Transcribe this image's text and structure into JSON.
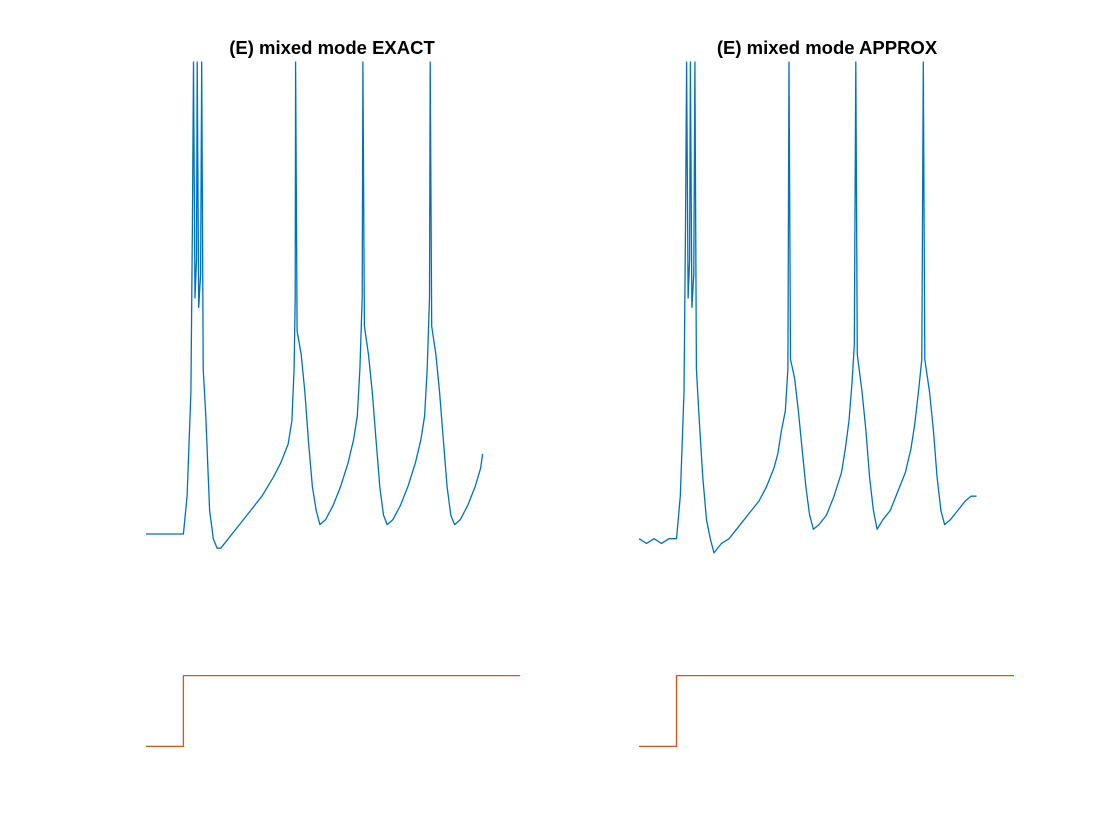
{
  "chart_data": [
    {
      "type": "line",
      "title": "(E) mixed mode EXACT",
      "grid": false,
      "axes_visible": false,
      "series": [
        {
          "color": "#0072BD",
          "points": [
            [
              0,
              -70
            ],
            [
              10,
              -70
            ],
            [
              11,
              -62
            ],
            [
              12,
              -40
            ],
            [
              12.4,
              -5
            ],
            [
              12.7,
              30
            ],
            [
              13.1,
              -20
            ],
            [
              13.5,
              -12
            ],
            [
              13.7,
              30
            ],
            [
              14.1,
              -22
            ],
            [
              14.6,
              -15
            ],
            [
              14.9,
              30
            ],
            [
              15.3,
              -35
            ],
            [
              16,
              -45
            ],
            [
              17,
              -65
            ],
            [
              18,
              -71
            ],
            [
              19,
              -73
            ],
            [
              20,
              -73
            ],
            [
              22,
              -71
            ],
            [
              25,
              -68
            ],
            [
              28,
              -65
            ],
            [
              31,
              -62
            ],
            [
              34,
              -58
            ],
            [
              36,
              -55
            ],
            [
              38,
              -51
            ],
            [
              39,
              -46
            ],
            [
              39.6,
              -35
            ],
            [
              39.9,
              -20
            ],
            [
              40,
              30
            ],
            [
              40.4,
              -27
            ],
            [
              41.5,
              -32
            ],
            [
              42.5,
              -40
            ],
            [
              43.5,
              -51
            ],
            [
              44.5,
              -60
            ],
            [
              45.5,
              -65
            ],
            [
              46.5,
              -68
            ],
            [
              48,
              -67
            ],
            [
              50,
              -64
            ],
            [
              52,
              -60
            ],
            [
              54,
              -55
            ],
            [
              55.5,
              -50
            ],
            [
              56.5,
              -45
            ],
            [
              57.2,
              -35
            ],
            [
              57.8,
              -20
            ],
            [
              58,
              30
            ],
            [
              58.4,
              -26
            ],
            [
              59.5,
              -32
            ],
            [
              60.5,
              -40
            ],
            [
              61.5,
              -50
            ],
            [
              62.5,
              -60
            ],
            [
              63.5,
              -66
            ],
            [
              64.5,
              -68
            ],
            [
              66,
              -67
            ],
            [
              68,
              -64
            ],
            [
              70,
              -60
            ],
            [
              72,
              -55
            ],
            [
              73.5,
              -50
            ],
            [
              74.5,
              -45
            ],
            [
              75.2,
              -35
            ],
            [
              75.8,
              -20
            ],
            [
              76,
              30
            ],
            [
              76.4,
              -26
            ],
            [
              77.5,
              -32
            ],
            [
              78.5,
              -40
            ],
            [
              79.5,
              -50
            ],
            [
              80.5,
              -60
            ],
            [
              81.5,
              -66
            ],
            [
              82.5,
              -68
            ],
            [
              84,
              -67
            ],
            [
              86,
              -64
            ],
            [
              88,
              -60
            ],
            [
              89.5,
              -56
            ],
            [
              90,
              -53
            ]
          ]
        },
        {
          "color": "#D95319",
          "points": [
            [
              0,
              -115
            ],
            [
              10,
              -115
            ],
            [
              10,
              -100
            ],
            [
              100,
              -100
            ]
          ]
        }
      ]
    },
    {
      "type": "line",
      "title": "(E) mixed mode APPROX",
      "grid": false,
      "axes_visible": false,
      "series": [
        {
          "color": "#0072BD",
          "points": [
            [
              0,
              -71
            ],
            [
              2,
              -72
            ],
            [
              4,
              -71
            ],
            [
              6,
              -72
            ],
            [
              8,
              -71
            ],
            [
              10,
              -71
            ],
            [
              11,
              -62
            ],
            [
              12,
              -40
            ],
            [
              12.4,
              -5
            ],
            [
              12.7,
              30
            ],
            [
              13.1,
              -20
            ],
            [
              13.5,
              -12
            ],
            [
              13.7,
              30
            ],
            [
              14.1,
              -22
            ],
            [
              14.6,
              -15
            ],
            [
              14.9,
              30
            ],
            [
              15.3,
              -35
            ],
            [
              16,
              -45
            ],
            [
              17,
              -58
            ],
            [
              18,
              -67
            ],
            [
              19,
              -71
            ],
            [
              20,
              -74
            ],
            [
              22,
              -72
            ],
            [
              24,
              -71
            ],
            [
              26,
              -69
            ],
            [
              28,
              -67
            ],
            [
              30,
              -65
            ],
            [
              32,
              -63
            ],
            [
              34,
              -60
            ],
            [
              36,
              -56
            ],
            [
              37,
              -53
            ],
            [
              38,
              -48
            ],
            [
              39,
              -44
            ],
            [
              39.7,
              -35
            ],
            [
              40,
              30
            ],
            [
              40.4,
              -33
            ],
            [
              41.5,
              -37
            ],
            [
              42.5,
              -44
            ],
            [
              43.5,
              -52
            ],
            [
              44.5,
              -60
            ],
            [
              45.5,
              -66
            ],
            [
              46.5,
              -69
            ],
            [
              48,
              -68
            ],
            [
              50,
              -66
            ],
            [
              52,
              -62
            ],
            [
              54,
              -57
            ],
            [
              55,
              -52
            ],
            [
              56,
              -46
            ],
            [
              56.8,
              -38
            ],
            [
              57.4,
              -30
            ],
            [
              57.8,
              30
            ],
            [
              58.2,
              -32
            ],
            [
              59.5,
              -40
            ],
            [
              60.5,
              -48
            ],
            [
              61.5,
              -58
            ],
            [
              62.5,
              -65
            ],
            [
              63.5,
              -69
            ],
            [
              65,
              -67
            ],
            [
              67,
              -65
            ],
            [
              69,
              -61
            ],
            [
              71,
              -57
            ],
            [
              72.5,
              -52
            ],
            [
              73.5,
              -47
            ],
            [
              74.5,
              -40
            ],
            [
              75.4,
              -33
            ],
            [
              75.8,
              30
            ],
            [
              76.2,
              -33
            ],
            [
              77.5,
              -40
            ],
            [
              78.5,
              -48
            ],
            [
              79.5,
              -58
            ],
            [
              80.5,
              -65
            ],
            [
              81.5,
              -68
            ],
            [
              83,
              -67
            ],
            [
              85,
              -65
            ],
            [
              87,
              -63
            ],
            [
              88.5,
              -62
            ],
            [
              90,
              -62
            ]
          ]
        },
        {
          "color": "#D95319",
          "points": [
            [
              0,
              -115
            ],
            [
              10,
              -115
            ],
            [
              10,
              -100
            ],
            [
              100,
              -100
            ]
          ]
        }
      ]
    }
  ]
}
